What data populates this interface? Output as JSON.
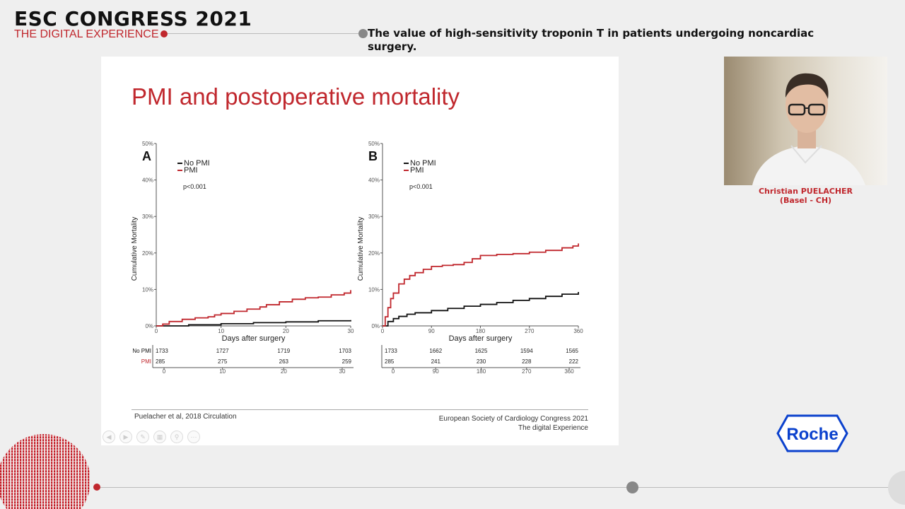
{
  "header": {
    "congress": "ESC CONGRESS 2021",
    "tagline": "THE DIGITAL EXPERIENCE",
    "talk_title": "The value of high-sensitivity troponin T in patients undergoing noncardiac surgery."
  },
  "slide": {
    "title": "PMI and postoperative mortality",
    "reference": "Puelacher et al, 2018 Circulation",
    "footer_line1": "European Society of Cardiology Congress 2021",
    "footer_line2": "The digital Experience"
  },
  "speaker": {
    "name": "Christian PUELACHER",
    "affiliation": "(Basel - CH)"
  },
  "logo": {
    "text": "Roche"
  },
  "colors": {
    "accent": "#c0272d",
    "no_pmi": "#111111",
    "pmi": "#c0272d",
    "roche_blue": "#0b41cd"
  },
  "chart_data": [
    {
      "type": "line",
      "panel_label": "A",
      "xlabel": "Days after surgery",
      "ylabel": "Cumulative Mortality",
      "xlim": [
        0,
        30
      ],
      "ylim": [
        0,
        50
      ],
      "xticks": [
        0,
        10,
        20,
        30
      ],
      "yticks": [
        "0%",
        "10%",
        "20%",
        "30%",
        "40%",
        "50%"
      ],
      "pvalue": "p<0.001",
      "legend": [
        "No PMI",
        "PMI"
      ],
      "series": [
        {
          "name": "No PMI",
          "color": "#111111",
          "x": [
            0,
            5,
            10,
            15,
            20,
            25,
            30
          ],
          "y": [
            0,
            0.3,
            0.6,
            0.9,
            1.1,
            1.4,
            1.6
          ]
        },
        {
          "name": "PMI",
          "color": "#c0272d",
          "x": [
            0,
            1,
            2,
            4,
            6,
            8,
            9,
            10,
            12,
            14,
            16,
            17,
            19,
            21,
            23,
            25,
            27,
            29,
            30
          ],
          "y": [
            0,
            0.5,
            1.2,
            1.8,
            2.2,
            2.5,
            3.0,
            3.4,
            4.0,
            4.6,
            5.2,
            5.8,
            6.6,
            7.3,
            7.7,
            7.9,
            8.5,
            9.0,
            9.8
          ]
        }
      ],
      "risk_table": {
        "rows": [
          {
            "label": "No PMI",
            "values": [
              "1733",
              "1727",
              "1719",
              "1703"
            ]
          },
          {
            "label": "PMI",
            "values": [
              "285",
              "275",
              "263",
              "259"
            ]
          }
        ],
        "ticks": [
          "0",
          "10",
          "20",
          "30"
        ]
      }
    },
    {
      "type": "line",
      "panel_label": "B",
      "xlabel": "Days after surgery",
      "ylabel": "Cumulative Mortality",
      "xlim": [
        0,
        360
      ],
      "ylim": [
        0,
        50
      ],
      "xticks": [
        0,
        90,
        180,
        270,
        360
      ],
      "yticks": [
        "0%",
        "10%",
        "20%",
        "30%",
        "40%",
        "50%"
      ],
      "pvalue": "p<0.001",
      "legend": [
        "No PMI",
        "PMI"
      ],
      "series": [
        {
          "name": "No PMI",
          "color": "#111111",
          "x": [
            0,
            10,
            20,
            30,
            45,
            60,
            90,
            120,
            150,
            180,
            210,
            240,
            270,
            300,
            330,
            360
          ],
          "y": [
            0,
            1.2,
            2.0,
            2.6,
            3.2,
            3.6,
            4.2,
            4.8,
            5.4,
            5.9,
            6.4,
            7.0,
            7.5,
            8.1,
            8.7,
            9.3
          ]
        },
        {
          "name": "PMI",
          "color": "#c0272d",
          "x": [
            0,
            5,
            10,
            15,
            20,
            30,
            40,
            50,
            60,
            75,
            90,
            110,
            130,
            150,
            165,
            180,
            210,
            240,
            270,
            300,
            330,
            350,
            360
          ],
          "y": [
            0,
            2.5,
            5.0,
            7.5,
            9.0,
            11.5,
            12.8,
            13.8,
            14.6,
            15.5,
            16.3,
            16.6,
            16.8,
            17.4,
            18.4,
            19.3,
            19.6,
            19.8,
            20.2,
            20.7,
            21.4,
            21.9,
            22.6
          ]
        }
      ],
      "risk_table": {
        "rows": [
          {
            "label": "No PMI",
            "values": [
              "1733",
              "1662",
              "1625",
              "1594",
              "1565"
            ]
          },
          {
            "label": "PMI",
            "values": [
              "285",
              "241",
              "230",
              "228",
              "222"
            ]
          }
        ],
        "ticks": [
          "0",
          "90",
          "180",
          "270",
          "360"
        ]
      }
    }
  ]
}
